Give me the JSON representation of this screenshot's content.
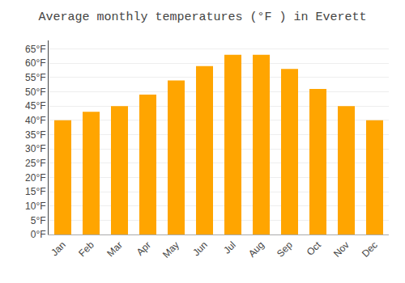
{
  "chart_data": {
    "type": "bar",
    "title": "Average monthly temperatures (°F ) in Everett",
    "categories": [
      "Jan",
      "Feb",
      "Mar",
      "Apr",
      "May",
      "Jun",
      "Jul",
      "Aug",
      "Sep",
      "Oct",
      "Nov",
      "Dec"
    ],
    "values": [
      40,
      43,
      45,
      49,
      54,
      59,
      63,
      63,
      58,
      51,
      45,
      40
    ],
    "color": "#FFA500",
    "ylim": [
      0,
      68
    ],
    "yticks": [
      {
        "value": 0,
        "label": "0°F"
      },
      {
        "value": 5,
        "label": "5°F"
      },
      {
        "value": 10,
        "label": "10°F"
      },
      {
        "value": 15,
        "label": "15°F"
      },
      {
        "value": 20,
        "label": "20°F"
      },
      {
        "value": 25,
        "label": "25°F"
      },
      {
        "value": 30,
        "label": "30°F"
      },
      {
        "value": 35,
        "label": "35°F"
      },
      {
        "value": 40,
        "label": "40°F"
      },
      {
        "value": 45,
        "label": "45°F"
      },
      {
        "value": 50,
        "label": "50°F"
      },
      {
        "value": 55,
        "label": "55°F"
      },
      {
        "value": 60,
        "label": "60°F"
      },
      {
        "value": 65,
        "label": "65°F"
      }
    ],
    "grid": true
  }
}
